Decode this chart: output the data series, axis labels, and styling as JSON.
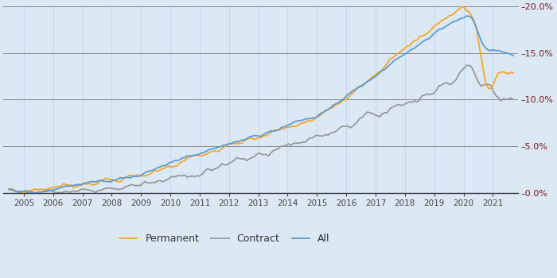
{
  "background_color": "#dce9f5",
  "plot_bg_color": "#dce9f5",
  "grid_h_color": "#888888",
  "grid_v_color": "#c5d8ee",
  "ylim": [
    0.0,
    0.2
  ],
  "yticks": [
    0.0,
    0.05,
    0.1,
    0.15,
    0.2
  ],
  "line_permanent_color": "#f5a623",
  "line_contract_color": "#999999",
  "line_all_color": "#5b9bd5",
  "legend_labels": [
    "Permanent",
    "Contract",
    "All"
  ],
  "linewidth": 1.3,
  "tick_color": "#7a1a1a",
  "bottom_line_color": "#333333"
}
